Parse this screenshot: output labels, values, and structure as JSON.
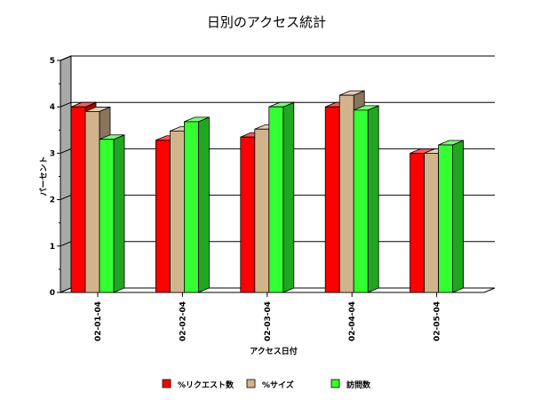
{
  "chart_data": {
    "type": "bar",
    "title": "日別のアクセス統計",
    "xlabel": "アクセス日付",
    "ylabel": "パーセント",
    "categories": [
      "02-01-04",
      "02-02-04",
      "02-03-04",
      "02-04-04",
      "02-05-04"
    ],
    "series": [
      {
        "name": "%リクエスト数",
        "values": [
          4.0,
          3.28,
          3.35,
          4.0,
          3.0
        ],
        "color": "#ff0000"
      },
      {
        "name": "%サイズ",
        "values": [
          3.9,
          3.48,
          3.52,
          4.25,
          3.0
        ],
        "color": "#d2b48c"
      },
      {
        "name": "訪問数",
        "values": [
          3.3,
          3.68,
          4.0,
          3.93,
          3.18
        ],
        "color": "#33ff33"
      }
    ],
    "yticks": [
      "0",
      "1",
      "2",
      "3",
      "4",
      "5"
    ],
    "ylim": [
      0,
      5
    ],
    "grid": true,
    "style": "3d-bar",
    "legend_position": "bottom"
  }
}
